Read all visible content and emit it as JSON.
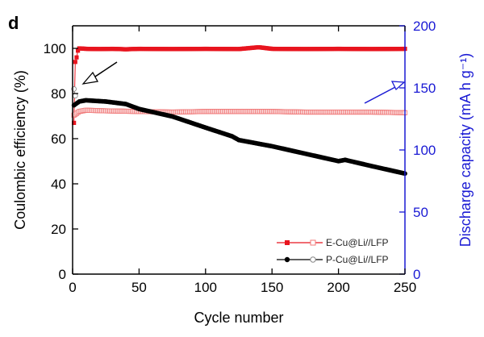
{
  "panel_label": "d",
  "chart_data": {
    "type": "scatter",
    "x_axis": {
      "label": "Cycle number",
      "range": [
        0,
        250
      ],
      "ticks": [
        0,
        50,
        100,
        150,
        200,
        250
      ],
      "tick_labels": [
        "0",
        "50",
        "100",
        "150",
        "200",
        "250"
      ]
    },
    "y_axis_left": {
      "label": "Coulombic efficiency (%)",
      "range": [
        0,
        110
      ],
      "ticks": [
        0,
        20,
        40,
        60,
        80,
        100
      ],
      "tick_labels": [
        "0",
        "20",
        "40",
        "60",
        "80",
        "100"
      ],
      "color": "#000000"
    },
    "y_axis_right": {
      "label": "Discharge capacity (mA h g⁻¹)",
      "range": [
        0,
        200
      ],
      "ticks": [
        0,
        50,
        100,
        150,
        200
      ],
      "tick_labels": [
        "0",
        "50",
        "100",
        "150",
        "200"
      ],
      "color": "#1a1ad4"
    },
    "legend": {
      "position": "bottom-right",
      "entries": [
        "E-Cu@Li//LFP",
        "P-Cu@Li//LFP"
      ]
    },
    "series": [
      {
        "name": "E-Cu@Li//LFP",
        "metric": "coulombic_efficiency",
        "axis": "left",
        "color": "#e8141e",
        "marker": "filled-square",
        "x": [
          1,
          2,
          3,
          4,
          5,
          10,
          20,
          30,
          40,
          50,
          75,
          100,
          125,
          140,
          150,
          175,
          200,
          225,
          250
        ],
        "y": [
          67,
          94,
          96,
          99,
          100,
          99.8,
          99.7,
          99.8,
          99.6,
          99.8,
          99.7,
          99.8,
          99.7,
          100.5,
          99.8,
          99.7,
          99.8,
          99.7,
          99.8
        ]
      },
      {
        "name": "E-Cu@Li//LFP",
        "metric": "discharge_capacity",
        "axis": "right",
        "color": "#f07a7a",
        "marker": "open-square",
        "x": [
          1,
          5,
          10,
          25,
          50,
          75,
          100,
          125,
          150,
          175,
          200,
          225,
          250
        ],
        "y": [
          128,
          131,
          132,
          131.5,
          131,
          130.5,
          131,
          131,
          131,
          130.5,
          130.5,
          130.5,
          130
        ]
      },
      {
        "name": "P-Cu@Li//LFP",
        "metric": "coulombic_efficiency",
        "axis": "left",
        "color": "#888888",
        "marker": "open-circle",
        "x": [
          1,
          2
        ],
        "y": [
          82,
          79
        ]
      },
      {
        "name": "P-Cu@Li//LFP",
        "metric": "discharge_capacity",
        "axis": "right",
        "color": "#000000",
        "marker": "filled-circle",
        "x": [
          1,
          5,
          10,
          25,
          40,
          50,
          75,
          100,
          120,
          125,
          150,
          175,
          200,
          205,
          225,
          250
        ],
        "y": [
          136,
          139,
          140,
          139,
          137,
          133,
          127,
          118,
          111,
          108,
          103,
          97,
          91,
          92,
          87,
          81
        ]
      }
    ],
    "annotations": [
      {
        "type": "arrow",
        "direction": "toward left axis",
        "color": "#000000"
      },
      {
        "type": "arrow",
        "direction": "toward right axis",
        "color": "#1a1ad4"
      }
    ]
  }
}
